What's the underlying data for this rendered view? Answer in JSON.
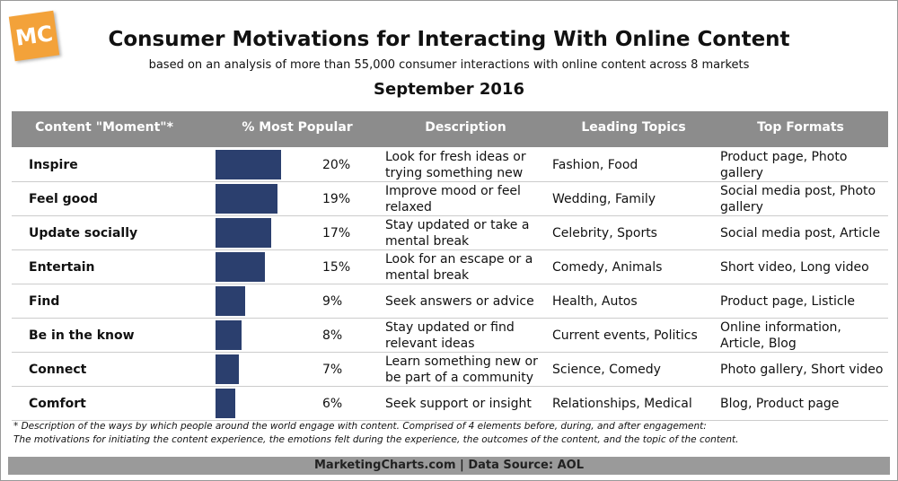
{
  "logo": "MC",
  "header": {
    "title": "Consumer Motivations for Interacting With Online Content",
    "subtitle": "based on an analysis of more than 55,000 consumer interactions with online content across 8 markets",
    "date": "September 2016"
  },
  "table": {
    "columns": [
      "Content \"Moment\"*",
      "% Most Popular",
      "Description",
      "Leading Topics",
      "Top Formats"
    ],
    "bar_color": "#2b3f6e",
    "rows": [
      {
        "moment": "Inspire",
        "pct": 20,
        "pct_label": "20%",
        "description": "Look for fresh ideas or trying something new",
        "topics": "Fashion, Food",
        "formats": "Product page, Photo gallery"
      },
      {
        "moment": "Feel good",
        "pct": 19,
        "pct_label": "19%",
        "description": "Improve mood or feel relaxed",
        "topics": "Wedding, Family",
        "formats": "Social media post, Photo gallery"
      },
      {
        "moment": "Update socially",
        "pct": 17,
        "pct_label": "17%",
        "description": "Stay updated or take a mental break",
        "topics": "Celebrity, Sports",
        "formats": "Social media post, Article"
      },
      {
        "moment": "Entertain",
        "pct": 15,
        "pct_label": "15%",
        "description": "Look for an escape or a mental break",
        "topics": "Comedy, Animals",
        "formats": "Short video, Long video"
      },
      {
        "moment": "Find",
        "pct": 9,
        "pct_label": "9%",
        "description": "Seek answers or advice",
        "topics": "Health, Autos",
        "formats": "Product page, Listicle"
      },
      {
        "moment": "Be in the know",
        "pct": 8,
        "pct_label": "8%",
        "description": "Stay updated or find relevant ideas",
        "topics": "Current events, Politics",
        "formats": "Online information, Article, Blog"
      },
      {
        "moment": "Connect",
        "pct": 7,
        "pct_label": "7%",
        "description": "Learn something new or be part of a community",
        "topics": "Science, Comedy",
        "formats": "Photo gallery, Short video"
      },
      {
        "moment": "Comfort",
        "pct": 6,
        "pct_label": "6%",
        "description": "Seek support or insight",
        "topics": "Relationships, Medical",
        "formats": "Blog, Product page"
      }
    ]
  },
  "footnote": [
    "* Description of the ways by which people around the world engage with content. Comprised of 4 elements before, during, and after engagement:",
    "The motivations for initiating the content experience, the emotions felt during the experience, the outcomes of the content, and the topic of the content."
  ],
  "source": "MarketingCharts.com | Data Source: AOL"
}
